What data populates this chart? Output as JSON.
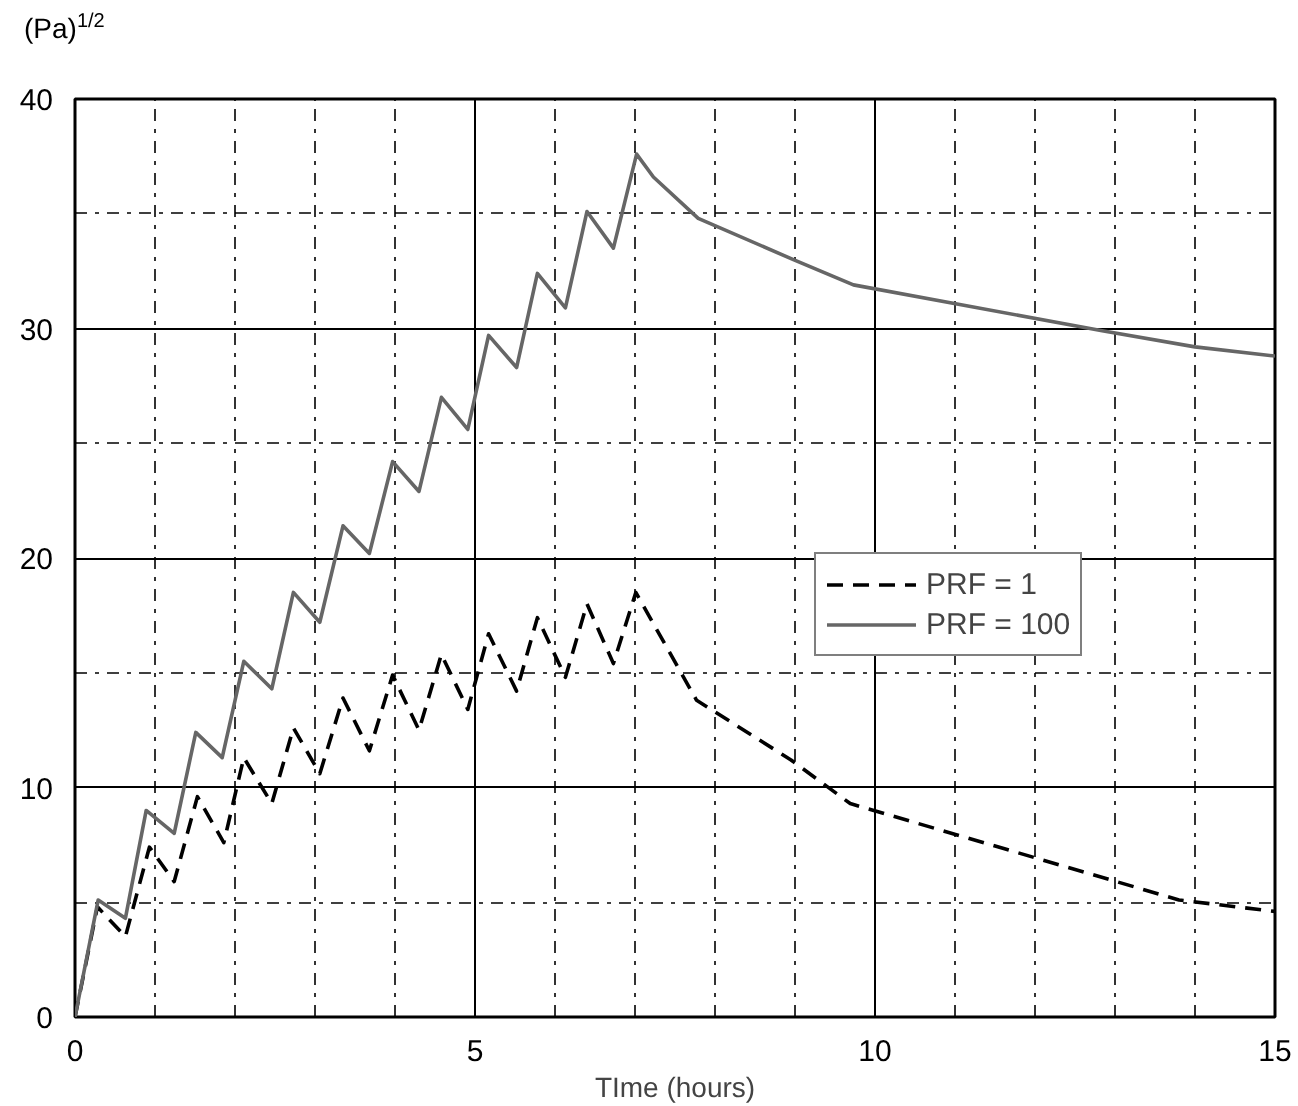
{
  "chart_data": {
    "type": "line",
    "xlabel": "TIme (hours)",
    "ylabel": "(Pa)$^{1/2}$",
    "xlim": [
      0,
      15
    ],
    "ylim": [
      0,
      40
    ],
    "xticks": [
      0,
      {
        "value": 1,
        "label": null
      },
      {
        "value": 2,
        "label": null
      },
      {
        "value": 3,
        "label": null
      },
      {
        "value": 4,
        "label": null
      },
      5,
      {
        "value": 6,
        "label": null
      },
      {
        "value": 7,
        "label": null
      },
      {
        "value": 8,
        "label": null
      },
      {
        "value": 9,
        "label": null
      },
      10,
      {
        "value": 11,
        "label": null
      },
      {
        "value": 12,
        "label": null
      },
      {
        "value": 13,
        "label": null
      },
      {
        "value": 14,
        "label": null
      },
      15
    ],
    "yticks": [
      0,
      {
        "value": 5,
        "label": null
      },
      10,
      {
        "value": 15,
        "label": null
      },
      20,
      {
        "value": 25,
        "label": null
      },
      30,
      {
        "value": 35,
        "label": null
      },
      40
    ],
    "grid": true,
    "legend": "right",
    "series": [
      {
        "name": "PRF = 1",
        "color": "#000000",
        "line_style": "dashed",
        "x": [
          0,
          0.28,
          0.63,
          0.93,
          1.24,
          1.53,
          1.86,
          2.11,
          2.46,
          2.73,
          3.06,
          3.35,
          3.68,
          3.97,
          4.3,
          4.58,
          4.91,
          5.17,
          5.52,
          5.78,
          6.13,
          6.4,
          6.73,
          7.01,
          7.77,
          8.95,
          9.69,
          13.8,
          15
        ],
        "values": [
          0,
          4.8,
          3.5,
          7.4,
          5.9,
          9.6,
          7.6,
          11.3,
          9.3,
          12.6,
          10.6,
          13.9,
          11.6,
          14.9,
          12.5,
          15.8,
          13.4,
          16.7,
          14.2,
          17.4,
          14.8,
          18.0,
          15.4,
          18.5,
          13.8,
          11.2,
          9.3,
          5.1,
          4.6
        ]
      },
      {
        "name": "PRF = 100",
        "color": "#666666",
        "line_style": "solid",
        "x": [
          0,
          0.29,
          0.63,
          0.89,
          1.24,
          1.51,
          1.84,
          2.11,
          2.46,
          2.73,
          3.06,
          3.35,
          3.68,
          3.97,
          4.3,
          4.58,
          4.91,
          5.17,
          5.52,
          5.78,
          6.13,
          6.4,
          6.73,
          7.02,
          7.23,
          7.79,
          8.98,
          9.73,
          12.84,
          14.0,
          15
        ],
        "values": [
          0,
          5.1,
          4.3,
          9.0,
          8.0,
          12.4,
          11.3,
          15.5,
          14.3,
          18.5,
          17.2,
          21.4,
          20.2,
          24.2,
          22.9,
          27.0,
          25.6,
          29.7,
          28.3,
          32.4,
          30.9,
          35.1,
          33.5,
          37.6,
          36.6,
          34.8,
          33.0,
          31.9,
          29.9,
          29.2,
          28.8
        ]
      }
    ]
  }
}
